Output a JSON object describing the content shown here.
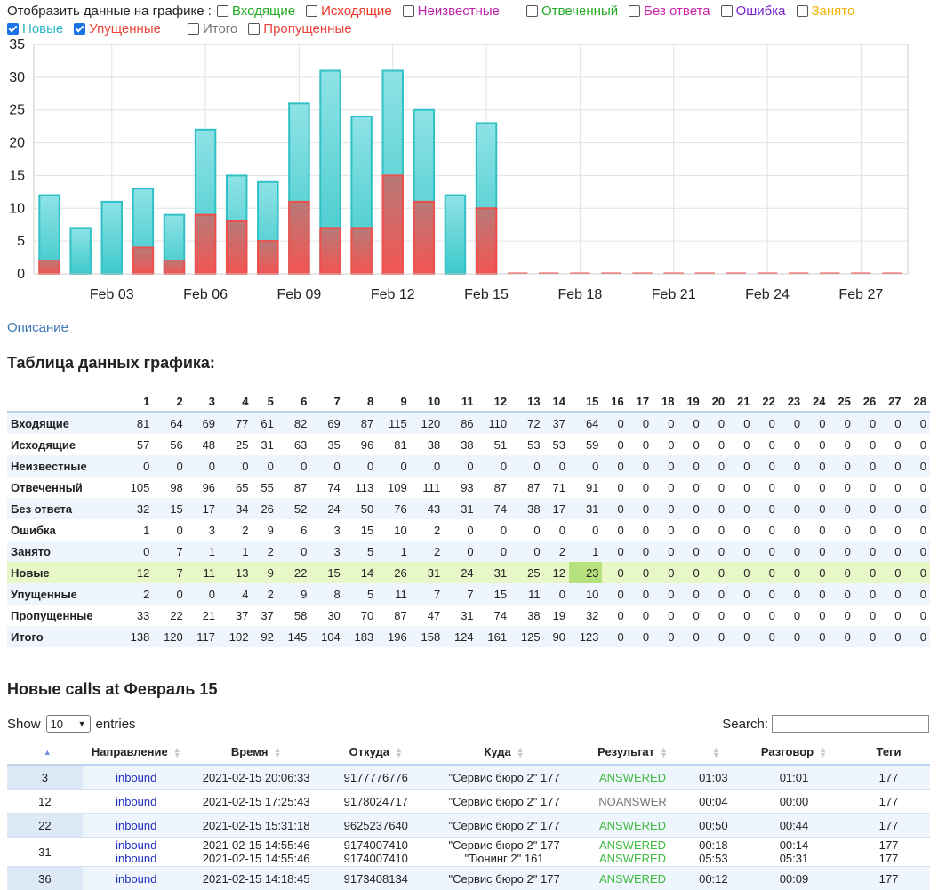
{
  "legend": {
    "prefix": "Отобразить данные на графике :",
    "items": [
      {
        "label": "Входящие",
        "color": "#22aa22",
        "checked": false
      },
      {
        "label": "Исходящие",
        "color": "#ee3322",
        "checked": false
      },
      {
        "label": "Неизвестные",
        "color": "#bb22aa",
        "checked": false
      },
      {
        "label": "Отвеченный",
        "color": "#22aa22",
        "checked": false
      },
      {
        "label": "Без ответа",
        "color": "#cc22aa",
        "checked": false
      },
      {
        "label": "Ошибка",
        "color": "#7722cc",
        "checked": false
      },
      {
        "label": "Занято",
        "color": "#f0b400",
        "checked": false
      },
      {
        "label": "Новые",
        "color": "#2ab5c8",
        "checked": true
      },
      {
        "label": "Упущенные",
        "color": "#e8443a",
        "checked": true
      },
      {
        "label": "Итого",
        "color": "#777777",
        "checked": false
      },
      {
        "label": "Пропущенные",
        "color": "#e8443a",
        "checked": false
      }
    ]
  },
  "chart_data": {
    "type": "bar",
    "categories": [
      "Feb 01",
      "Feb 02",
      "Feb 03",
      "Feb 04",
      "Feb 05",
      "Feb 06",
      "Feb 07",
      "Feb 08",
      "Feb 09",
      "Feb 10",
      "Feb 11",
      "Feb 12",
      "Feb 13",
      "Feb 14",
      "Feb 15",
      "Feb 16",
      "Feb 17",
      "Feb 18",
      "Feb 19",
      "Feb 20",
      "Feb 21",
      "Feb 22",
      "Feb 23",
      "Feb 24",
      "Feb 25",
      "Feb 26",
      "Feb 27",
      "Feb 28"
    ],
    "x_tick_labels": [
      "Feb 03",
      "Feb 06",
      "Feb 09",
      "Feb 12",
      "Feb 15",
      "Feb 18",
      "Feb 21",
      "Feb 24",
      "Feb 27"
    ],
    "y_tick_labels": [
      "0",
      "5",
      "10",
      "15",
      "20",
      "25",
      "30",
      "35"
    ],
    "ylim": [
      0,
      35
    ],
    "grid": true,
    "series": [
      {
        "name": "Новые",
        "color": "#2ab5c8",
        "values": [
          12,
          7,
          11,
          13,
          9,
          22,
          15,
          14,
          26,
          31,
          24,
          31,
          25,
          12,
          23,
          0,
          0,
          0,
          0,
          0,
          0,
          0,
          0,
          0,
          0,
          0,
          0,
          0
        ]
      },
      {
        "name": "Упущенные",
        "color": "#e8443a",
        "values": [
          2,
          0,
          0,
          4,
          2,
          9,
          8,
          5,
          11,
          7,
          7,
          15,
          11,
          0,
          10,
          0,
          0,
          0,
          0,
          0,
          0,
          0,
          0,
          0,
          0,
          0,
          0,
          0
        ]
      }
    ]
  },
  "description_link": "Описание",
  "table_title": "Таблица данных графика:",
  "table": {
    "days": [
      "1",
      "2",
      "3",
      "4",
      "5",
      "6",
      "7",
      "8",
      "9",
      "10",
      "11",
      "12",
      "13",
      "14",
      "15",
      "16",
      "17",
      "18",
      "19",
      "20",
      "21",
      "22",
      "23",
      "24",
      "25",
      "26",
      "27",
      "28"
    ],
    "rows": [
      {
        "label": "Входящие",
        "values": [
          "81",
          "64",
          "69",
          "77",
          "61",
          "82",
          "69",
          "87",
          "115",
          "120",
          "86",
          "110",
          "72",
          "37",
          "64",
          "0",
          "0",
          "0",
          "0",
          "0",
          "0",
          "0",
          "0",
          "0",
          "0",
          "0",
          "0",
          "0"
        ]
      },
      {
        "label": "Исходящие",
        "values": [
          "57",
          "56",
          "48",
          "25",
          "31",
          "63",
          "35",
          "96",
          "81",
          "38",
          "38",
          "51",
          "53",
          "53",
          "59",
          "0",
          "0",
          "0",
          "0",
          "0",
          "0",
          "0",
          "0",
          "0",
          "0",
          "0",
          "0",
          "0"
        ]
      },
      {
        "label": "Неизвестные",
        "values": [
          "0",
          "0",
          "0",
          "0",
          "0",
          "0",
          "0",
          "0",
          "0",
          "0",
          "0",
          "0",
          "0",
          "0",
          "0",
          "0",
          "0",
          "0",
          "0",
          "0",
          "0",
          "0",
          "0",
          "0",
          "0",
          "0",
          "0",
          "0"
        ]
      },
      {
        "label": "Отвеченный",
        "values": [
          "105",
          "98",
          "96",
          "65",
          "55",
          "87",
          "74",
          "113",
          "109",
          "111",
          "93",
          "87",
          "87",
          "71",
          "91",
          "0",
          "0",
          "0",
          "0",
          "0",
          "0",
          "0",
          "0",
          "0",
          "0",
          "0",
          "0",
          "0"
        ]
      },
      {
        "label": "Без ответа",
        "values": [
          "32",
          "15",
          "17",
          "34",
          "26",
          "52",
          "24",
          "50",
          "76",
          "43",
          "31",
          "74",
          "38",
          "17",
          "31",
          "0",
          "0",
          "0",
          "0",
          "0",
          "0",
          "0",
          "0",
          "0",
          "0",
          "0",
          "0",
          "0"
        ]
      },
      {
        "label": "Ошибка",
        "values": [
          "1",
          "0",
          "3",
          "2",
          "9",
          "6",
          "3",
          "15",
          "10",
          "2",
          "0",
          "0",
          "0",
          "0",
          "0",
          "0",
          "0",
          "0",
          "0",
          "0",
          "0",
          "0",
          "0",
          "0",
          "0",
          "0",
          "0",
          "0"
        ]
      },
      {
        "label": "Занято",
        "values": [
          "0",
          "7",
          "1",
          "1",
          "2",
          "0",
          "3",
          "5",
          "1",
          "2",
          "0",
          "0",
          "0",
          "2",
          "1",
          "0",
          "0",
          "0",
          "0",
          "0",
          "0",
          "0",
          "0",
          "0",
          "0",
          "0",
          "0",
          "0"
        ]
      },
      {
        "label": "Новые",
        "values": [
          "12",
          "7",
          "11",
          "13",
          "9",
          "22",
          "15",
          "14",
          "26",
          "31",
          "24",
          "31",
          "25",
          "12",
          "23",
          "0",
          "0",
          "0",
          "0",
          "0",
          "0",
          "0",
          "0",
          "0",
          "0",
          "0",
          "0",
          "0"
        ]
      },
      {
        "label": "Упущенные",
        "values": [
          "2",
          "0",
          "0",
          "4",
          "2",
          "9",
          "8",
          "5",
          "11",
          "7",
          "7",
          "15",
          "11",
          "0",
          "10",
          "0",
          "0",
          "0",
          "0",
          "0",
          "0",
          "0",
          "0",
          "0",
          "0",
          "0",
          "0",
          "0"
        ]
      },
      {
        "label": "Пропущенные",
        "values": [
          "33",
          "22",
          "21",
          "37",
          "37",
          "58",
          "30",
          "70",
          "87",
          "47",
          "31",
          "74",
          "38",
          "19",
          "32",
          "0",
          "0",
          "0",
          "0",
          "0",
          "0",
          "0",
          "0",
          "0",
          "0",
          "0",
          "0",
          "0"
        ]
      },
      {
        "label": "Итого",
        "values": [
          "138",
          "120",
          "117",
          "102",
          "92",
          "145",
          "104",
          "183",
          "196",
          "158",
          "124",
          "161",
          "125",
          "90",
          "123",
          "0",
          "0",
          "0",
          "0",
          "0",
          "0",
          "0",
          "0",
          "0",
          "0",
          "0",
          "0",
          "0"
        ]
      }
    ]
  },
  "calls_title": "Новые calls at Февраль 15",
  "show": {
    "prefix": "Show",
    "value": "10",
    "suffix": "entries"
  },
  "search_label": "Search:",
  "calls": {
    "headers": [
      "",
      "Направление",
      "Время",
      "Откуда",
      "Куда",
      "Результат",
      "",
      "Разговор",
      "Теги"
    ],
    "rows": [
      {
        "num": "3",
        "dir": [
          "inbound"
        ],
        "time": [
          "2021-02-15 20:06:33"
        ],
        "from": [
          "9177776776"
        ],
        "to": [
          "\"Сервис бюро 2\" 177"
        ],
        "result": [
          "ANSWERED"
        ],
        "dur": [
          "01:03"
        ],
        "talk": [
          "01:01"
        ],
        "tags": [
          "177"
        ]
      },
      {
        "num": "12",
        "dir": [
          "inbound"
        ],
        "time": [
          "2021-02-15 17:25:43"
        ],
        "from": [
          "9178024717"
        ],
        "to": [
          "\"Сервис бюро 2\" 177"
        ],
        "result": [
          "NOANSWER"
        ],
        "dur": [
          "00:04"
        ],
        "talk": [
          "00:00"
        ],
        "tags": [
          "177"
        ]
      },
      {
        "num": "22",
        "dir": [
          "inbound"
        ],
        "time": [
          "2021-02-15 15:31:18"
        ],
        "from": [
          "9625237640"
        ],
        "to": [
          "\"Сервис бюро 2\" 177"
        ],
        "result": [
          "ANSWERED"
        ],
        "dur": [
          "00:50"
        ],
        "talk": [
          "00:44"
        ],
        "tags": [
          "177"
        ]
      },
      {
        "num": "31",
        "dir": [
          "inbound",
          "inbound"
        ],
        "time": [
          "2021-02-15 14:55:46",
          "2021-02-15 14:55:46"
        ],
        "from": [
          "9174007410",
          "9174007410"
        ],
        "to": [
          "\"Сервис бюро 2\" 177",
          "\"Тюнинг 2\" 161"
        ],
        "result": [
          "ANSWERED",
          "ANSWERED"
        ],
        "dur": [
          "00:18",
          "05:53"
        ],
        "talk": [
          "00:14",
          "05:31"
        ],
        "tags": [
          "177",
          "177"
        ]
      },
      {
        "num": "36",
        "dir": [
          "inbound"
        ],
        "time": [
          "2021-02-15 14:18:45"
        ],
        "from": [
          "9173408134"
        ],
        "to": [
          "\"Сервис бюро 2\" 177"
        ],
        "result": [
          "ANSWERED"
        ],
        "dur": [
          "00:12"
        ],
        "talk": [
          "00:09"
        ],
        "tags": [
          "177"
        ]
      }
    ]
  }
}
